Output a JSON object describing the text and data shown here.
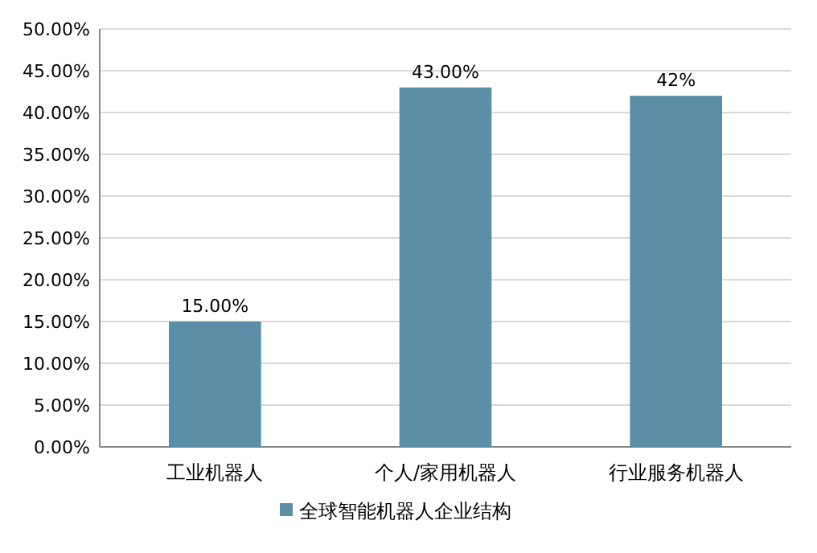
{
  "chart_data": {
    "type": "bar",
    "categories": [
      "工业机器人",
      "个人/家用机器人",
      "行业服务机器人"
    ],
    "series": [
      {
        "name": "全球智能机器人企业结构",
        "color": "#5b8fa8",
        "values": [
          15,
          43,
          42
        ],
        "value_labels": [
          "15.00%",
          "43.00%",
          "42%"
        ]
      }
    ],
    "ylim": [
      0,
      50
    ],
    "yticks": [
      {
        "value": 0,
        "label": "0.00%"
      },
      {
        "value": 5,
        "label": "5.00%"
      },
      {
        "value": 10,
        "label": "10.00%"
      },
      {
        "value": 15,
        "label": "15.00%"
      },
      {
        "value": 20,
        "label": "20.00%"
      },
      {
        "value": 25,
        "label": "25.00%"
      },
      {
        "value": 30,
        "label": "30.00%"
      },
      {
        "value": 35,
        "label": "35.00%"
      },
      {
        "value": 40,
        "label": "40.00%"
      },
      {
        "value": 45,
        "label": "45.00%"
      },
      {
        "value": 50,
        "label": "50.00%"
      }
    ],
    "grid": "y",
    "legend": "bottom"
  }
}
